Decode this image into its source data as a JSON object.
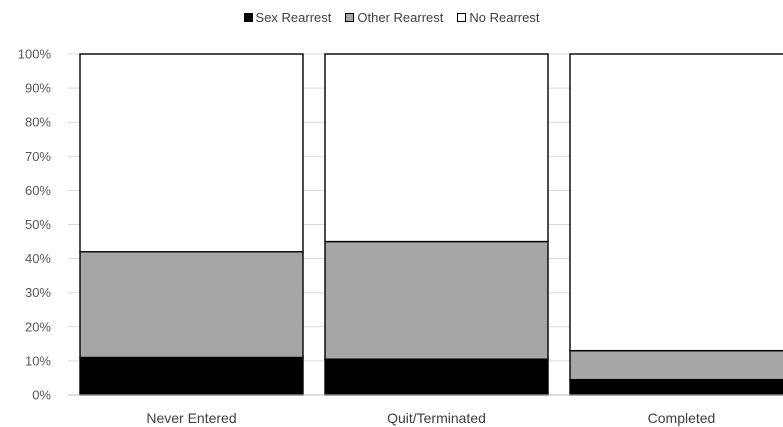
{
  "chart_data": {
    "type": "bar",
    "stacked": true,
    "categories": [
      "Never Entered",
      "Quit/Terminated",
      "Completed"
    ],
    "series": [
      {
        "name": "Sex Rearrest",
        "values": [
          11,
          10.5,
          4.5
        ],
        "color": "#000000"
      },
      {
        "name": "Other Rearrest",
        "values": [
          31,
          34.5,
          8.5
        ],
        "color": "#a6a6a6"
      },
      {
        "name": "No Rearrest",
        "values": [
          58,
          55,
          87
        ],
        "color": "#ffffff"
      }
    ],
    "ylim": [
      0,
      100
    ],
    "yticks": [
      "0%",
      "10%",
      "20%",
      "30%",
      "40%",
      "50%",
      "60%",
      "70%",
      "80%",
      "90%",
      "100%"
    ],
    "grid": true,
    "legend": "top"
  }
}
